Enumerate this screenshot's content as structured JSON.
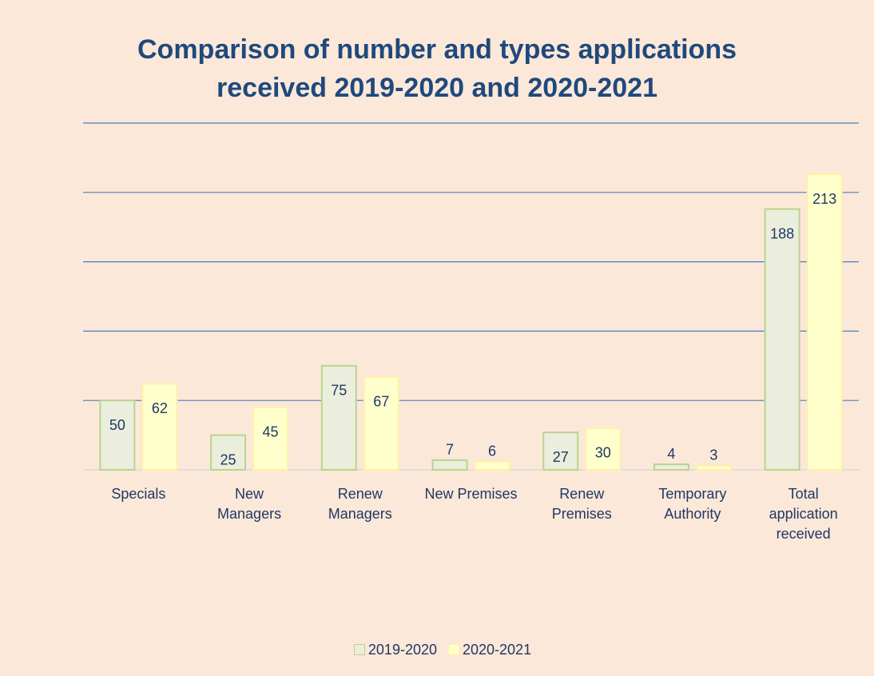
{
  "chart_data": {
    "type": "bar",
    "title": "Comparison of number and types applications\nreceived 2019-2020 and 2020-2021",
    "categories": [
      "Specials",
      "New\nManagers",
      "Renew\nManagers",
      "New Premises",
      "Renew\nPremises",
      "Temporary\nAuthority",
      "Total\napplication\nreceived"
    ],
    "series": [
      {
        "name": "2019-2020",
        "color": "#ebeedc",
        "values": [
          50,
          25,
          75,
          7,
          27,
          4,
          188
        ]
      },
      {
        "name": "2020-2021",
        "color": "#ffffcc",
        "values": [
          62,
          45,
          67,
          6,
          30,
          3,
          213
        ]
      }
    ],
    "ylim": [
      0,
      250
    ],
    "yticks": [
      0,
      50,
      100,
      150,
      200,
      250
    ],
    "grid": true,
    "legend": "bottom"
  }
}
